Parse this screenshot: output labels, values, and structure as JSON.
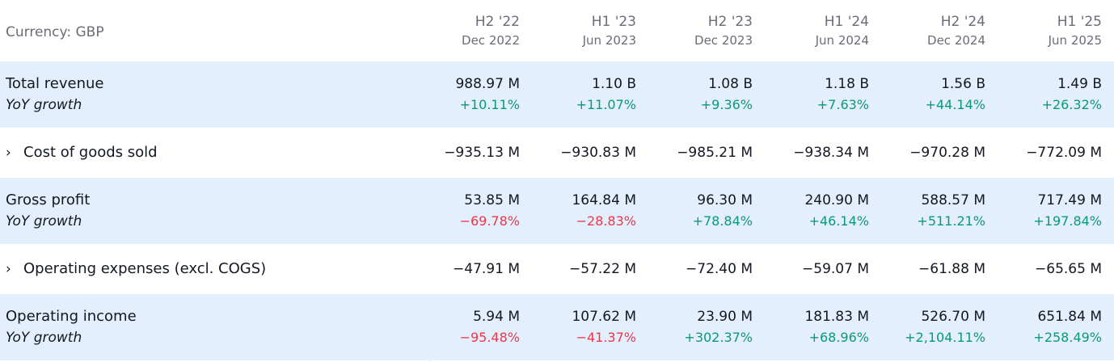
{
  "header": {
    "currency_label": "Currency: GBP",
    "periods": [
      {
        "label": "H2 '22",
        "date": "Dec 2022"
      },
      {
        "label": "H1 '23",
        "date": "Jun 2023"
      },
      {
        "label": "H2 '23",
        "date": "Dec 2023"
      },
      {
        "label": "H1 '24",
        "date": "Jun 2024"
      },
      {
        "label": "H2 '24",
        "date": "Dec 2024"
      },
      {
        "label": "H1 '25",
        "date": "Jun 2025"
      }
    ]
  },
  "rows": [
    {
      "name": "Total revenue",
      "sub": "YoY growth",
      "expandable": false,
      "values": [
        "988.97 M",
        "1.10 B",
        "1.08 B",
        "1.18 B",
        "1.56 B",
        "1.49 B"
      ],
      "growth": [
        "+10.11%",
        "+11.07%",
        "+9.36%",
        "+7.63%",
        "+44.14%",
        "+26.32%"
      ]
    },
    {
      "name": "Cost of goods sold",
      "expandable": true,
      "chevron": "›",
      "values": [
        "−935.13 M",
        "−930.83 M",
        "−985.21 M",
        "−938.34 M",
        "−970.28 M",
        "−772.09 M"
      ]
    },
    {
      "name": "Gross profit",
      "sub": "YoY growth",
      "expandable": false,
      "values": [
        "53.85 M",
        "164.84 M",
        "96.30 M",
        "240.90 M",
        "588.57 M",
        "717.49 M"
      ],
      "growth": [
        "−69.78%",
        "−28.83%",
        "+78.84%",
        "+46.14%",
        "+511.21%",
        "+197.84%"
      ]
    },
    {
      "name": "Operating expenses (excl. COGS)",
      "expandable": true,
      "chevron": "›",
      "values": [
        "−47.91 M",
        "−57.22 M",
        "−72.40 M",
        "−59.07 M",
        "−61.88 M",
        "−65.65 M"
      ]
    },
    {
      "name": "Operating income",
      "sub": "YoY growth",
      "expandable": false,
      "values": [
        "5.94 M",
        "107.62 M",
        "23.90 M",
        "181.83 M",
        "526.70 M",
        "651.84 M"
      ],
      "growth": [
        "−95.48%",
        "−41.37%",
        "+302.37%",
        "+68.96%",
        "+2,104.11%",
        "+258.49%"
      ]
    }
  ],
  "colors": {
    "highlight_row": "#e3effd",
    "positive": "#089981",
    "negative": "#f23645",
    "muted_text": "#6a6d78"
  }
}
